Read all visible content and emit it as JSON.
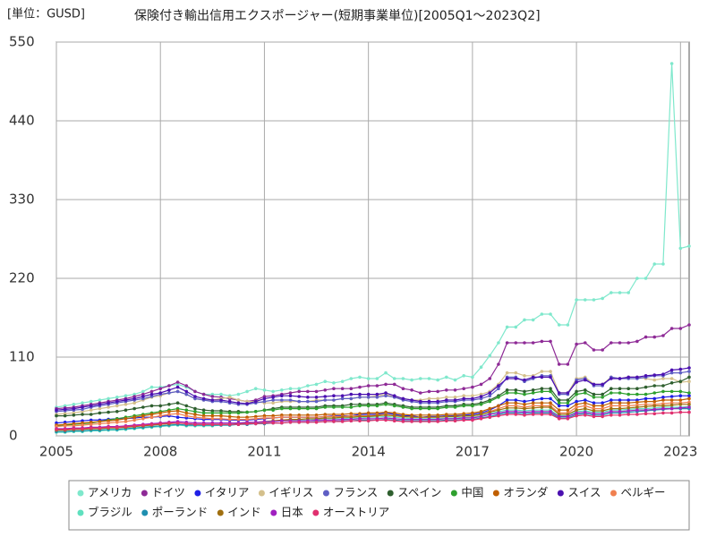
{
  "chart_data": {
    "type": "line",
    "unit_label": "[単位：GUSD]",
    "title": "保険付き輸出信用エクスポージャー(短期事業単位)[2005Q1～2023Q2]",
    "x": [
      2005,
      2005.25,
      2005.5,
      2005.75,
      2006,
      2006.25,
      2006.5,
      2006.75,
      2007,
      2007.25,
      2007.5,
      2007.75,
      2008,
      2008.25,
      2008.5,
      2008.75,
      2009,
      2009.25,
      2009.5,
      2009.75,
      2010,
      2010.25,
      2010.5,
      2010.75,
      2011,
      2011.25,
      2011.5,
      2011.75,
      2012,
      2012.25,
      2012.5,
      2012.75,
      2013,
      2013.25,
      2013.5,
      2013.75,
      2014,
      2014.25,
      2014.5,
      2014.75,
      2015,
      2015.25,
      2015.5,
      2015.75,
      2016,
      2016.25,
      2016.5,
      2016.75,
      2017,
      2017.25,
      2017.5,
      2017.75,
      2018,
      2018.25,
      2018.5,
      2018.75,
      2019,
      2019.25,
      2019.5,
      2019.75,
      2020,
      2020.25,
      2020.5,
      2020.75,
      2021,
      2021.25,
      2021.5,
      2021.75,
      2022,
      2022.25,
      2022.5,
      2022.75,
      2023,
      2023.25
    ],
    "xlim": [
      2005,
      2023.25
    ],
    "xticks": [
      2005,
      2008,
      2011,
      2014,
      2017,
      2020,
      2023
    ],
    "ylim": [
      0,
      550
    ],
    "yticks": [
      0,
      110,
      220,
      330,
      440,
      550
    ],
    "grid": true,
    "legend": "bottom",
    "series": [
      {
        "name": "アメリカ",
        "color": "#7fe8cc",
        "values": [
          40,
          42,
          44,
          46,
          48,
          50,
          52,
          54,
          56,
          58,
          62,
          68,
          68,
          70,
          72,
          68,
          62,
          58,
          58,
          58,
          56,
          58,
          62,
          66,
          64,
          62,
          64,
          66,
          66,
          70,
          72,
          76,
          74,
          76,
          80,
          82,
          80,
          80,
          88,
          80,
          80,
          78,
          80,
          80,
          78,
          82,
          78,
          84,
          82,
          96,
          112,
          130,
          152,
          152,
          162,
          162,
          170,
          170,
          155,
          155,
          190,
          190,
          190,
          192,
          200,
          200,
          200,
          220,
          220,
          240,
          240,
          520,
          262,
          265
        ]
      },
      {
        "name": "ドイツ",
        "color": "#8e2a96",
        "values": [
          38,
          39,
          40,
          42,
          44,
          46,
          48,
          50,
          52,
          55,
          58,
          62,
          66,
          70,
          75,
          70,
          62,
          58,
          55,
          54,
          52,
          50,
          48,
          50,
          55,
          56,
          58,
          60,
          62,
          62,
          62,
          64,
          66,
          66,
          66,
          68,
          70,
          70,
          72,
          72,
          66,
          64,
          60,
          62,
          62,
          64,
          64,
          66,
          68,
          72,
          80,
          100,
          130,
          130,
          130,
          130,
          132,
          132,
          100,
          100,
          128,
          130,
          120,
          120,
          130,
          130,
          130,
          132,
          138,
          138,
          140,
          150,
          150,
          155
        ]
      },
      {
        "name": "イタリア",
        "color": "#1f1fe6",
        "values": [
          18,
          19,
          20,
          21,
          22,
          22,
          23,
          24,
          24,
          25,
          26,
          26,
          27,
          28,
          26,
          25,
          24,
          23,
          23,
          23,
          22,
          22,
          22,
          23,
          24,
          25,
          26,
          26,
          26,
          26,
          26,
          27,
          28,
          28,
          28,
          30,
          30,
          30,
          32,
          30,
          28,
          28,
          26,
          27,
          27,
          28,
          28,
          29,
          30,
          32,
          36,
          42,
          50,
          50,
          48,
          50,
          52,
          52,
          42,
          42,
          48,
          50,
          46,
          46,
          50,
          50,
          50,
          50,
          52,
          52,
          54,
          55,
          56,
          56
        ]
      },
      {
        "name": "イギリス",
        "color": "#d4c08c",
        "values": [
          30,
          31,
          32,
          34,
          36,
          38,
          40,
          42,
          44,
          46,
          50,
          54,
          56,
          60,
          62,
          58,
          52,
          50,
          50,
          52,
          54,
          50,
          48,
          48,
          46,
          46,
          48,
          48,
          48,
          48,
          50,
          50,
          50,
          52,
          52,
          54,
          54,
          56,
          58,
          54,
          52,
          50,
          50,
          52,
          52,
          54,
          54,
          56,
          56,
          58,
          62,
          72,
          88,
          88,
          84,
          84,
          90,
          90,
          60,
          60,
          80,
          82,
          72,
          72,
          82,
          80,
          82,
          82,
          80,
          78,
          80,
          80,
          75,
          76
        ]
      },
      {
        "name": "フランス",
        "color": "#5e5ec4",
        "values": [
          34,
          35,
          36,
          37,
          40,
          42,
          44,
          46,
          48,
          50,
          52,
          55,
          58,
          60,
          62,
          58,
          52,
          50,
          48,
          48,
          46,
          44,
          44,
          46,
          48,
          50,
          50,
          50,
          48,
          48,
          48,
          50,
          50,
          52,
          52,
          54,
          54,
          54,
          56,
          54,
          50,
          48,
          46,
          46,
          46,
          48,
          48,
          50,
          50,
          52,
          56,
          66,
          82,
          82,
          76,
          80,
          84,
          84,
          58,
          58,
          78,
          80,
          70,
          70,
          82,
          80,
          80,
          80,
          82,
          84,
          84,
          88,
          88,
          90
        ]
      },
      {
        "name": "スペイン",
        "color": "#2f5f2f",
        "values": [
          28,
          28,
          29,
          30,
          30,
          32,
          33,
          34,
          36,
          38,
          40,
          42,
          42,
          44,
          46,
          42,
          38,
          36,
          35,
          35,
          34,
          34,
          33,
          34,
          36,
          38,
          40,
          40,
          40,
          40,
          40,
          42,
          42,
          42,
          44,
          44,
          44,
          44,
          46,
          44,
          42,
          40,
          40,
          40,
          40,
          42,
          42,
          44,
          44,
          46,
          50,
          56,
          64,
          64,
          62,
          64,
          66,
          66,
          50,
          50,
          62,
          64,
          58,
          58,
          66,
          66,
          66,
          66,
          68,
          70,
          70,
          74,
          76,
          82
        ]
      },
      {
        "name": "中国",
        "color": "#2ea02e",
        "values": [
          14,
          15,
          16,
          17,
          18,
          20,
          22,
          24,
          26,
          28,
          30,
          32,
          34,
          36,
          38,
          36,
          34,
          32,
          32,
          32,
          32,
          32,
          33,
          34,
          36,
          36,
          38,
          38,
          38,
          38,
          38,
          40,
          40,
          40,
          40,
          42,
          42,
          42,
          44,
          42,
          40,
          38,
          38,
          38,
          38,
          40,
          40,
          42,
          42,
          44,
          48,
          54,
          60,
          60,
          58,
          60,
          62,
          62,
          46,
          46,
          58,
          60,
          54,
          54,
          60,
          60,
          58,
          58,
          58,
          60,
          62,
          62,
          62,
          60
        ]
      },
      {
        "name": "オランダ",
        "color": "#c05f00",
        "values": [
          15,
          16,
          17,
          18,
          19,
          20,
          21,
          22,
          24,
          26,
          28,
          30,
          32,
          34,
          35,
          32,
          30,
          28,
          28,
          28,
          27,
          26,
          26,
          27,
          28,
          28,
          29,
          29,
          29,
          29,
          29,
          30,
          30,
          30,
          31,
          31,
          32,
          32,
          33,
          32,
          30,
          29,
          29,
          29,
          29,
          30,
          30,
          31,
          32,
          34,
          38,
          42,
          46,
          46,
          44,
          46,
          46,
          46,
          36,
          36,
          44,
          46,
          42,
          42,
          46,
          46,
          46,
          47,
          48,
          48,
          50,
          50,
          50,
          52
        ]
      },
      {
        "name": "スイス",
        "color": "#4b10b0",
        "values": [
          36,
          37,
          38,
          40,
          42,
          44,
          46,
          48,
          50,
          52,
          55,
          58,
          60,
          64,
          68,
          62,
          55,
          52,
          50,
          50,
          48,
          46,
          45,
          48,
          52,
          54,
          56,
          56,
          55,
          54,
          54,
          55,
          56,
          56,
          58,
          58,
          58,
          58,
          60,
          56,
          52,
          50,
          48,
          48,
          48,
          50,
          50,
          52,
          52,
          55,
          60,
          70,
          80,
          80,
          78,
          82,
          82,
          82,
          60,
          60,
          75,
          78,
          72,
          72,
          80,
          80,
          82,
          82,
          84,
          85,
          86,
          92,
          93,
          95
        ]
      },
      {
        "name": "ベルギー",
        "color": "#f08050",
        "values": [
          13,
          14,
          14,
          15,
          16,
          17,
          18,
          19,
          20,
          22,
          24,
          26,
          28,
          30,
          31,
          28,
          26,
          25,
          24,
          24,
          23,
          23,
          23,
          24,
          25,
          25,
          26,
          26,
          26,
          26,
          26,
          27,
          27,
          27,
          28,
          28,
          28,
          29,
          30,
          28,
          27,
          26,
          26,
          26,
          26,
          27,
          27,
          28,
          28,
          30,
          34,
          38,
          42,
          42,
          40,
          42,
          42,
          42,
          32,
          32,
          40,
          42,
          38,
          38,
          42,
          42,
          42,
          43,
          44,
          44,
          45,
          46,
          46,
          47
        ]
      },
      {
        "name": "ブラジル",
        "color": "#5fe0bf",
        "values": [
          5,
          5,
          6,
          6,
          7,
          7,
          8,
          8,
          9,
          10,
          11,
          12,
          13,
          14,
          15,
          14,
          14,
          14,
          14,
          15,
          15,
          16,
          17,
          18,
          19,
          20,
          21,
          22,
          22,
          22,
          23,
          24,
          24,
          24,
          25,
          25,
          26,
          26,
          27,
          26,
          25,
          24,
          24,
          24,
          24,
          25,
          25,
          26,
          26,
          28,
          31,
          34,
          36,
          36,
          35,
          36,
          36,
          36,
          28,
          28,
          34,
          35,
          33,
          33,
          36,
          36,
          37,
          38,
          38,
          39,
          40,
          40,
          40,
          41
        ]
      },
      {
        "name": "ポーランド",
        "color": "#1f8fb0",
        "values": [
          6,
          6,
          7,
          7,
          8,
          8,
          9,
          9,
          10,
          11,
          12,
          13,
          14,
          15,
          16,
          15,
          15,
          15,
          15,
          15,
          15,
          16,
          16,
          17,
          17,
          18,
          18,
          19,
          19,
          19,
          20,
          20,
          20,
          21,
          21,
          22,
          22,
          22,
          23,
          22,
          21,
          21,
          21,
          21,
          21,
          22,
          22,
          23,
          23,
          25,
          27,
          30,
          32,
          32,
          31,
          32,
          32,
          32,
          25,
          25,
          30,
          31,
          29,
          29,
          32,
          32,
          33,
          34,
          35,
          36,
          37,
          38,
          38,
          38
        ]
      },
      {
        "name": "インド",
        "color": "#a06f10",
        "values": [
          8,
          8,
          9,
          9,
          10,
          10,
          11,
          11,
          12,
          13,
          14,
          15,
          16,
          17,
          18,
          17,
          16,
          16,
          16,
          16,
          16,
          17,
          18,
          19,
          20,
          21,
          22,
          23,
          23,
          24,
          24,
          25,
          25,
          26,
          26,
          27,
          27,
          28,
          29,
          28,
          27,
          26,
          26,
          26,
          26,
          27,
          27,
          28,
          28,
          30,
          33,
          36,
          39,
          39,
          38,
          39,
          40,
          40,
          30,
          30,
          36,
          38,
          35,
          35,
          38,
          38,
          39,
          40,
          41,
          42,
          42,
          43,
          44,
          44
        ]
      },
      {
        "name": "日本",
        "color": "#a020c0",
        "values": [
          10,
          10,
          11,
          11,
          12,
          12,
          13,
          13,
          14,
          15,
          16,
          17,
          18,
          19,
          20,
          19,
          18,
          18,
          18,
          18,
          18,
          18,
          19,
          19,
          20,
          20,
          21,
          21,
          21,
          21,
          22,
          22,
          22,
          23,
          23,
          24,
          24,
          24,
          25,
          24,
          23,
          23,
          23,
          23,
          23,
          24,
          24,
          25,
          25,
          27,
          30,
          32,
          34,
          34,
          33,
          34,
          34,
          34,
          27,
          27,
          32,
          33,
          31,
          31,
          34,
          34,
          35,
          36,
          36,
          37,
          38,
          38,
          39,
          40
        ]
      },
      {
        "name": "オーストリア",
        "color": "#e0306f",
        "values": [
          9,
          9,
          10,
          10,
          11,
          11,
          12,
          12,
          13,
          14,
          15,
          16,
          17,
          18,
          18,
          17,
          16,
          16,
          16,
          16,
          16,
          16,
          17,
          17,
          18,
          18,
          18,
          19,
          19,
          19,
          19,
          20,
          20,
          20,
          21,
          21,
          21,
          22,
          22,
          21,
          20,
          20,
          20,
          20,
          20,
          21,
          21,
          22,
          22,
          24,
          26,
          28,
          30,
          30,
          29,
          30,
          30,
          30,
          24,
          24,
          28,
          29,
          27,
          27,
          29,
          29,
          30,
          30,
          31,
          31,
          32,
          32,
          33,
          33
        ]
      }
    ]
  }
}
